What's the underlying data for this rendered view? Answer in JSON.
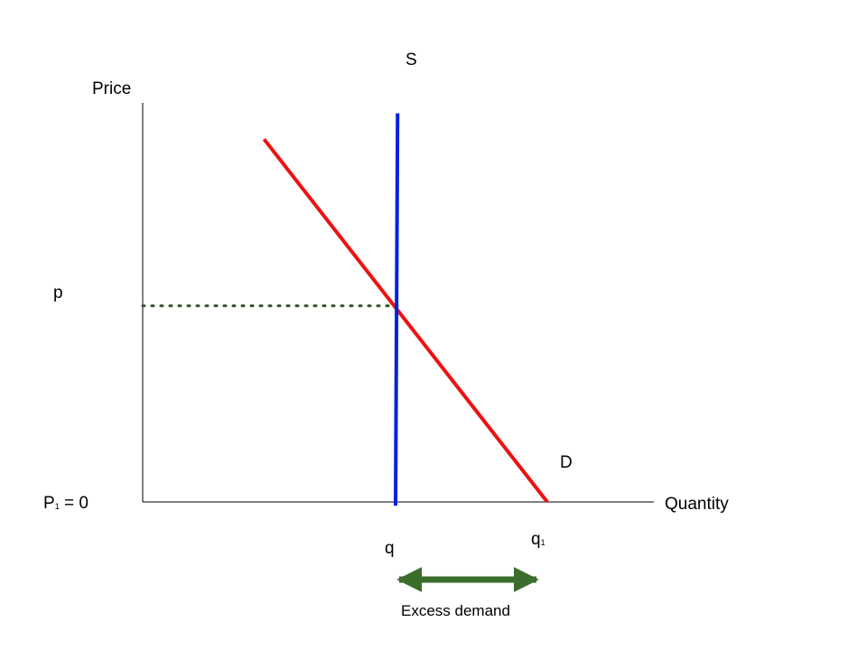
{
  "chart_data": {
    "type": "line",
    "title": "",
    "xlabel": "Quantity",
    "ylabel": "Price",
    "grid": false,
    "series": [
      {
        "name": "S",
        "color": "#0022dd",
        "points": [
          [
            0.63,
            1.05
          ],
          [
            0.625,
            -0.01
          ]
        ]
      },
      {
        "name": "D",
        "color": "#ee1111",
        "points": [
          [
            0.3,
            0.98
          ],
          [
            1.0,
            0.0
          ]
        ]
      }
    ],
    "guides": [
      {
        "kind": "horizontal-dotted",
        "color": "#2e5522",
        "y": 0.53,
        "x_from": 0,
        "x_to": 0.63
      }
    ],
    "tick_labels": {
      "p": "p",
      "p1_main": "P",
      "p1_sub": "1",
      "p1_rest": " = 0",
      "q": "q",
      "q1_main": "q",
      "q1_sub": "1"
    },
    "annotation": {
      "text": "Excess demand",
      "color": "#3a6e2a",
      "x_from": 0.625,
      "x_to": 1.0
    }
  }
}
